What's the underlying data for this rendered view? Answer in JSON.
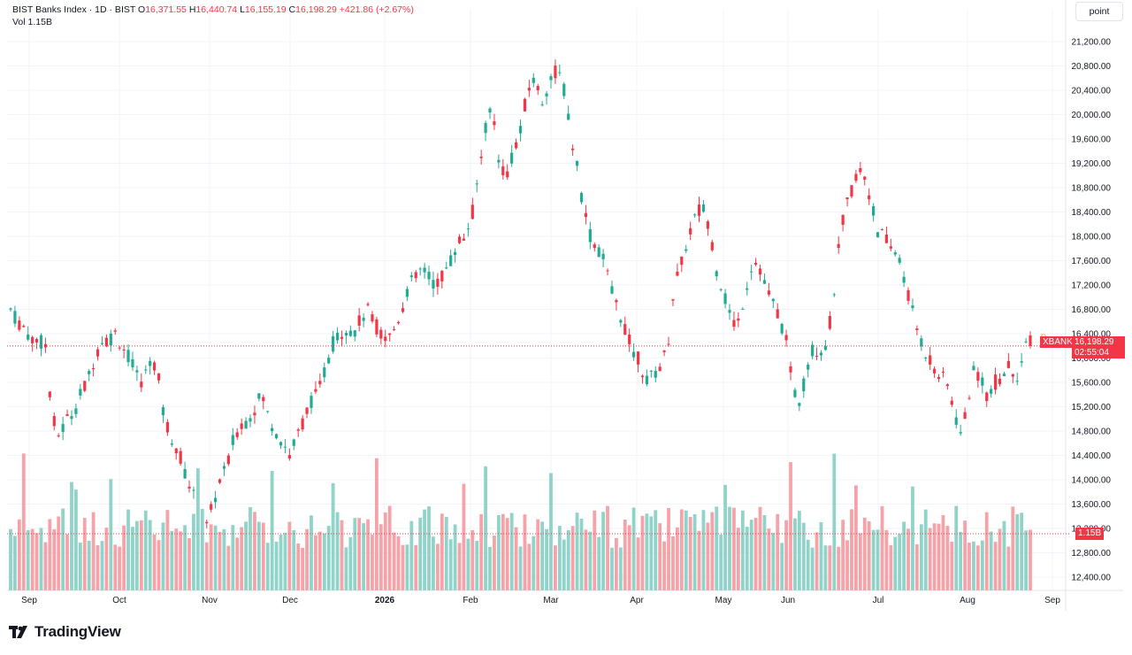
{
  "header": {
    "symbol": "BIST Banks Index · 1D · BIST",
    "o_label": "O",
    "o_value": "16,371.55",
    "h_label": "H",
    "h_value": "16,440.74",
    "l_label": "L",
    "l_value": "16,155.19",
    "c_label": "C",
    "c_value": "16,198.29",
    "change": "+421.86 (+2.67%)",
    "vol_label": "Vol",
    "vol_value": "1.15B"
  },
  "scale_button": "point",
  "price_tag": {
    "ticker": "XBANK",
    "price": "16,198.29",
    "countdown": "02:55:04"
  },
  "volume_tag": "1.15B",
  "logo_text": "TradingView",
  "colors": {
    "up": "#22ab94",
    "down": "#f23645",
    "up_vol": "#8fd3c9",
    "down_vol": "#f5a3a8",
    "grid": "#f0f3fa"
  },
  "chart_data": {
    "type": "candlestick",
    "y_ticks": [
      "21,200.00",
      "20,800.00",
      "20,400.00",
      "20,000.00",
      "19,600.00",
      "19,200.00",
      "18,800.00",
      "18,400.00",
      "18,000.00",
      "17,600.00",
      "17,200.00",
      "16,800.00",
      "16,400.00",
      "16,000.00",
      "15,600.00",
      "15,200.00",
      "14,800.00",
      "14,400.00",
      "14,000.00",
      "13,600.00",
      "13,200.00",
      "12,800.00",
      "12,400.00"
    ],
    "x_ticks": [
      "Sep",
      "Oct",
      "Nov",
      "Dec",
      "2026",
      "Feb",
      "Mar",
      "Apr",
      "May",
      "Jun",
      "Jul",
      "Aug",
      "Sep"
    ],
    "ylim": [
      12150,
      21500
    ],
    "last_price": 16198.29,
    "close_path": [
      [
        0,
        16800
      ],
      [
        5,
        16600
      ],
      [
        10,
        16500
      ],
      [
        15,
        16300
      ],
      [
        20,
        16300
      ],
      [
        25,
        16200
      ],
      [
        30,
        15000
      ],
      [
        35,
        14700
      ],
      [
        40,
        15000
      ],
      [
        45,
        15100
      ],
      [
        50,
        15400
      ],
      [
        55,
        15600
      ],
      [
        60,
        16000
      ],
      [
        65,
        16300
      ],
      [
        70,
        16300
      ],
      [
        75,
        16400
      ],
      [
        80,
        16200
      ],
      [
        85,
        16000
      ],
      [
        90,
        15700
      ],
      [
        95,
        15600
      ],
      [
        100,
        16000
      ],
      [
        105,
        15800
      ],
      [
        110,
        15000
      ],
      [
        115,
        14700
      ],
      [
        120,
        14500
      ],
      [
        125,
        14100
      ],
      [
        130,
        13800
      ],
      [
        135,
        13400
      ],
      [
        140,
        13200
      ],
      [
        145,
        13600
      ],
      [
        150,
        14000
      ],
      [
        155,
        14200
      ],
      [
        160,
        14700
      ],
      [
        165,
        14900
      ],
      [
        170,
        15000
      ],
      [
        175,
        15200
      ],
      [
        180,
        15400
      ],
      [
        185,
        15000
      ],
      [
        190,
        14800
      ],
      [
        195,
        14600
      ],
      [
        200,
        14400
      ],
      [
        205,
        14700
      ],
      [
        210,
        15000
      ],
      [
        215,
        15300
      ],
      [
        220,
        15400
      ],
      [
        225,
        15800
      ],
      [
        230,
        16200
      ],
      [
        235,
        16400
      ],
      [
        240,
        16500
      ],
      [
        245,
        16400
      ],
      [
        250,
        16600
      ],
      [
        255,
        16800
      ],
      [
        260,
        16600
      ],
      [
        265,
        16400
      ],
      [
        270,
        16300
      ],
      [
        275,
        16500
      ],
      [
        280,
        16800
      ],
      [
        285,
        17200
      ],
      [
        290,
        17300
      ],
      [
        295,
        17500
      ],
      [
        300,
        17300
      ],
      [
        305,
        17200
      ],
      [
        310,
        17400
      ],
      [
        315,
        17600
      ],
      [
        320,
        17900
      ],
      [
        325,
        18000
      ],
      [
        330,
        18300
      ],
      [
        335,
        19000
      ],
      [
        340,
        19800
      ],
      [
        345,
        20100
      ],
      [
        350,
        19200
      ],
      [
        355,
        19000
      ],
      [
        360,
        19400
      ],
      [
        365,
        19700
      ],
      [
        370,
        20400
      ],
      [
        375,
        20600
      ],
      [
        380,
        20200
      ],
      [
        385,
        20500
      ],
      [
        390,
        20700
      ],
      [
        395,
        20600
      ],
      [
        400,
        19800
      ],
      [
        405,
        19200
      ],
      [
        410,
        18500
      ],
      [
        415,
        18000
      ],
      [
        420,
        17800
      ],
      [
        425,
        17600
      ],
      [
        430,
        17100
      ],
      [
        435,
        16800
      ],
      [
        440,
        16500
      ],
      [
        445,
        16100
      ],
      [
        450,
        16000
      ],
      [
        455,
        15600
      ],
      [
        460,
        15700
      ],
      [
        465,
        15900
      ],
      [
        470,
        16100
      ],
      [
        475,
        17200
      ],
      [
        480,
        17500
      ],
      [
        485,
        18000
      ],
      [
        490,
        18300
      ],
      [
        495,
        18500
      ],
      [
        500,
        18200
      ],
      [
        505,
        17500
      ],
      [
        510,
        17100
      ],
      [
        515,
        16700
      ],
      [
        520,
        16500
      ],
      [
        525,
        17000
      ],
      [
        530,
        17500
      ],
      [
        535,
        17600
      ],
      [
        540,
        17200
      ],
      [
        545,
        16900
      ],
      [
        550,
        16700
      ],
      [
        555,
        16300
      ],
      [
        560,
        15500
      ],
      [
        565,
        15300
      ],
      [
        570,
        15800
      ],
      [
        575,
        16200
      ],
      [
        580,
        16100
      ],
      [
        585,
        16300
      ],
      [
        590,
        17200
      ],
      [
        595,
        18200
      ],
      [
        600,
        18600
      ],
      [
        605,
        19000
      ],
      [
        610,
        19100
      ],
      [
        615,
        18700
      ],
      [
        620,
        18100
      ],
      [
        625,
        18000
      ],
      [
        630,
        17800
      ],
      [
        635,
        17700
      ],
      [
        640,
        17300
      ],
      [
        645,
        16800
      ],
      [
        650,
        16400
      ],
      [
        655,
        16100
      ],
      [
        660,
        15900
      ],
      [
        665,
        15700
      ],
      [
        670,
        15600
      ],
      [
        675,
        15200
      ],
      [
        680,
        14700
      ],
      [
        685,
        15300
      ],
      [
        690,
        15800
      ],
      [
        695,
        15700
      ],
      [
        700,
        15300
      ],
      [
        705,
        15600
      ],
      [
        710,
        15700
      ],
      [
        715,
        15900
      ],
      [
        720,
        15700
      ],
      [
        725,
        16000
      ],
      [
        730,
        16400
      ]
    ]
  }
}
